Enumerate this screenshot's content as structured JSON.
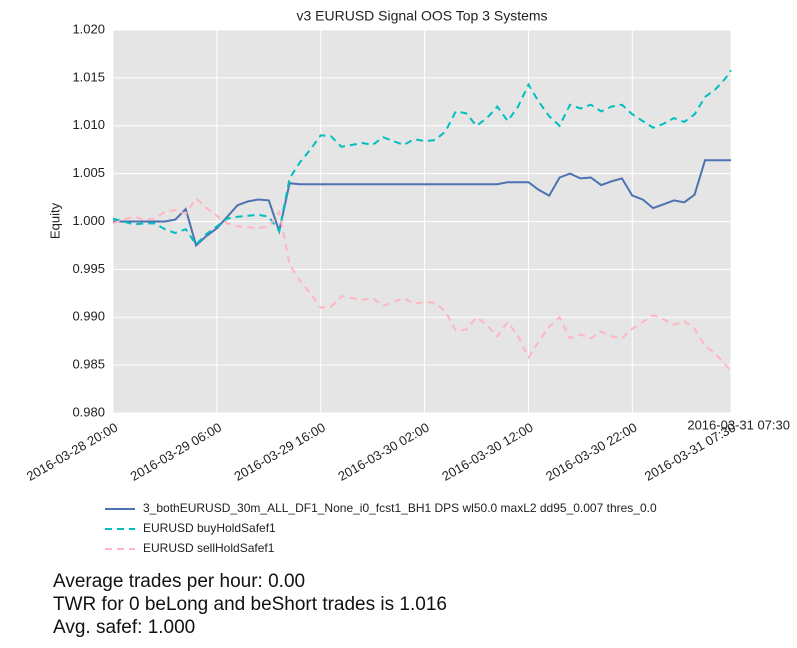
{
  "chart_data": {
    "type": "line",
    "title": "v3 EURUSD Signal OOS Top 3 Systems",
    "y_label": "Equity",
    "x": [
      "2016-03-28 20:00",
      "2016-03-28 21:00",
      "2016-03-28 22:00",
      "2016-03-28 23:00",
      "2016-03-29 00:00",
      "2016-03-29 01:00",
      "2016-03-29 02:00",
      "2016-03-29 03:00",
      "2016-03-29 04:00",
      "2016-03-29 05:00",
      "2016-03-29 06:00",
      "2016-03-29 07:00",
      "2016-03-29 08:00",
      "2016-03-29 09:00",
      "2016-03-29 10:00",
      "2016-03-29 11:00",
      "2016-03-29 12:00",
      "2016-03-29 13:00",
      "2016-03-29 14:00",
      "2016-03-29 15:00",
      "2016-03-29 16:00",
      "2016-03-29 17:00",
      "2016-03-29 18:00",
      "2016-03-29 19:00",
      "2016-03-29 20:00",
      "2016-03-29 21:00",
      "2016-03-29 22:00",
      "2016-03-29 23:00",
      "2016-03-30 00:00",
      "2016-03-30 01:00",
      "2016-03-30 02:00",
      "2016-03-30 03:00",
      "2016-03-30 04:00",
      "2016-03-30 05:00",
      "2016-03-30 06:00",
      "2016-03-30 07:00",
      "2016-03-30 08:00",
      "2016-03-30 09:00",
      "2016-03-30 10:00",
      "2016-03-30 11:00",
      "2016-03-30 12:00",
      "2016-03-30 13:00",
      "2016-03-30 14:00",
      "2016-03-30 15:00",
      "2016-03-30 16:00",
      "2016-03-30 17:00",
      "2016-03-30 18:00",
      "2016-03-30 19:00",
      "2016-03-30 20:00",
      "2016-03-30 21:00",
      "2016-03-30 22:00",
      "2016-03-30 23:00",
      "2016-03-31 00:00",
      "2016-03-31 01:00",
      "2016-03-31 02:00",
      "2016-03-31 03:00",
      "2016-03-31 04:00",
      "2016-03-31 05:00",
      "2016-03-31 06:00",
      "2016-03-31 07:00",
      "2016-03-31 07:30"
    ],
    "series": [
      {
        "name": "3_bothEURUSD_30m_ALL_DF1_None_i0_fcst1_BH1 DPS wl50.0 maxL2 dd95_0.007 thres_0.0",
        "color": "#4c72b0",
        "dashed": false,
        "values": [
          1.0,
          1.0,
          1.0,
          1.0,
          1.0,
          1.0,
          1.0002,
          1.0013,
          0.9975,
          0.9985,
          0.9993,
          1.0005,
          1.0017,
          1.0021,
          1.0023,
          1.0022,
          0.999,
          1.004,
          1.0039,
          1.0039,
          1.0039,
          1.0039,
          1.0039,
          1.0039,
          1.0039,
          1.0039,
          1.0039,
          1.0039,
          1.0039,
          1.0039,
          1.0039,
          1.0039,
          1.0039,
          1.0039,
          1.0039,
          1.0039,
          1.0039,
          1.0039,
          1.0041,
          1.0041,
          1.0041,
          1.0033,
          1.0027,
          1.0046,
          1.005,
          1.0045,
          1.0046,
          1.0038,
          1.0042,
          1.0045,
          1.0027,
          1.0023,
          1.0014,
          1.0018,
          1.0022,
          1.002,
          1.0028,
          1.0064,
          1.0064,
          1.0064,
          1.0064
        ]
      },
      {
        "name": "EURUSD buyHoldSafef1",
        "color": "#00bfbf",
        "dashed": true,
        "values": [
          1.0003,
          1.0,
          0.9997,
          0.9998,
          0.9998,
          0.9992,
          0.9988,
          0.9992,
          0.9976,
          0.9987,
          0.9995,
          1.0003,
          1.0005,
          1.0006,
          1.0007,
          1.0005,
          0.999,
          1.0045,
          1.0062,
          1.0075,
          1.009,
          1.0089,
          1.0078,
          1.008,
          1.0082,
          1.008,
          1.0088,
          1.0084,
          1.008,
          1.0086,
          1.0084,
          1.0085,
          1.0094,
          1.0115,
          1.0113,
          1.01,
          1.0108,
          1.012,
          1.0105,
          1.012,
          1.0143,
          1.0125,
          1.011,
          1.01,
          1.0122,
          1.0118,
          1.0122,
          1.0115,
          1.012,
          1.0122,
          1.0112,
          1.0105,
          1.0098,
          1.0102,
          1.0108,
          1.0104,
          1.0112,
          1.013,
          1.0138,
          1.015,
          1.0158
        ]
      },
      {
        "name": "EURUSD sellHoldSafef1",
        "color": "#ffb6c1",
        "dashed": true,
        "values": [
          0.9998,
          1.0002,
          1.0005,
          1.0002,
          1.0003,
          1.001,
          1.0012,
          1.0008,
          1.0024,
          1.0014,
          1.0006,
          0.9998,
          0.9995,
          0.9994,
          0.9993,
          0.9995,
          1.001,
          0.9955,
          0.9938,
          0.9925,
          0.991,
          0.9911,
          0.9922,
          0.992,
          0.9918,
          0.992,
          0.9912,
          0.9916,
          0.992,
          0.9914,
          0.9916,
          0.9915,
          0.9906,
          0.9886,
          0.9887,
          0.99,
          0.9892,
          0.988,
          0.9895,
          0.988,
          0.9858,
          0.9875,
          0.989,
          0.99,
          0.9878,
          0.9882,
          0.9878,
          0.9885,
          0.988,
          0.9878,
          0.9888,
          0.9895,
          0.9902,
          0.9898,
          0.9892,
          0.9896,
          0.9888,
          0.987,
          0.9862,
          0.985,
          0.9843
        ]
      }
    ],
    "xlim": [
      "2016-03-28 20:00",
      "2016-03-31 07:30"
    ],
    "xticks": [
      "2016-03-28 20:00",
      "2016-03-29 06:00",
      "2016-03-29 16:00",
      "2016-03-30 02:00",
      "2016-03-30 12:00",
      "2016-03-30 22:00",
      "2016-03-31 07:30"
    ],
    "ylim": [
      0.98,
      1.02
    ],
    "yticks": [
      {
        "value": 0.98,
        "label": "0.980"
      },
      0.985,
      {
        "value": 0.99,
        "label": "0.990"
      },
      0.995,
      {
        "value": 1.0,
        "label": "1.000"
      },
      1.005,
      {
        "value": 1.01,
        "label": "1.010"
      },
      1.015,
      {
        "value": 1.02,
        "label": "1.020"
      }
    ],
    "grid": true,
    "annotations": [
      "Average trades per hour: 0.00",
      "TWR for 0 beLong and beShort trades is 1.016",
      "Avg. safef: 1.000"
    ]
  }
}
